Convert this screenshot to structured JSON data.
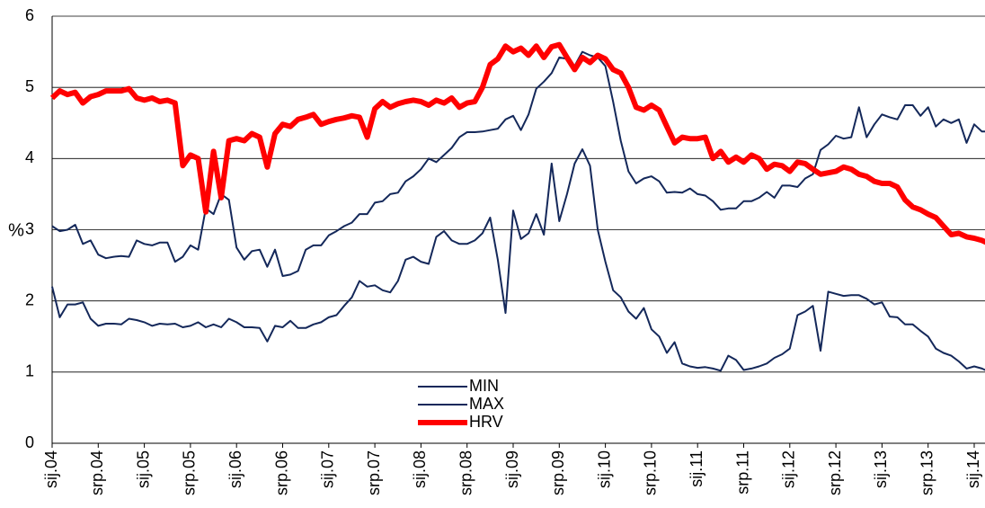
{
  "chart_data": {
    "type": "line",
    "y_label": "%",
    "categories": [
      "sij.04",
      null,
      null,
      null,
      null,
      null,
      "srp.04",
      null,
      null,
      null,
      null,
      null,
      "sij.05",
      null,
      null,
      null,
      null,
      null,
      "srp.05",
      null,
      null,
      null,
      null,
      null,
      "sij.06",
      null,
      null,
      null,
      null,
      null,
      "srp.06",
      null,
      null,
      null,
      null,
      null,
      "sij.07",
      null,
      null,
      null,
      null,
      null,
      "srp.07",
      null,
      null,
      null,
      null,
      null,
      "sij.08",
      null,
      null,
      null,
      null,
      null,
      "srp.08",
      null,
      null,
      null,
      null,
      null,
      "sij.09",
      null,
      null,
      null,
      null,
      null,
      "srp.09",
      null,
      null,
      null,
      null,
      null,
      "sij.10",
      null,
      null,
      null,
      null,
      null,
      "srp.10",
      null,
      null,
      null,
      null,
      null,
      "sij.11",
      null,
      null,
      null,
      null,
      null,
      "srp.11",
      null,
      null,
      null,
      null,
      null,
      "sij.12",
      null,
      null,
      null,
      null,
      null,
      "srp.12",
      null,
      null,
      null,
      null,
      null,
      "sij.13",
      null,
      null,
      null,
      null,
      null,
      "srp.13",
      null,
      null,
      null,
      null,
      null,
      "sij.14",
      null,
      null
    ],
    "series": [
      {
        "name": "MIN",
        "color": "#14285a",
        "values": [
          2.2,
          1.77,
          1.95,
          1.95,
          1.98,
          1.75,
          1.65,
          1.68,
          1.68,
          1.67,
          1.75,
          1.73,
          1.7,
          1.65,
          1.68,
          1.67,
          1.68,
          1.63,
          1.65,
          1.7,
          1.63,
          1.67,
          1.63,
          1.75,
          1.7,
          1.63,
          1.63,
          1.62,
          1.43,
          1.65,
          1.63,
          1.72,
          1.62,
          1.62,
          1.67,
          1.7,
          1.77,
          1.8,
          1.93,
          2.05,
          2.28,
          2.2,
          2.22,
          2.15,
          2.12,
          2.28,
          2.58,
          2.62,
          2.55,
          2.52,
          2.9,
          2.98,
          2.85,
          2.8,
          2.8,
          2.85,
          2.95,
          3.17,
          2.58,
          1.83,
          3.27,
          2.87,
          2.95,
          3.22,
          2.93,
          3.93,
          3.12,
          3.5,
          3.93,
          4.13,
          3.9,
          3.0,
          2.55,
          2.15,
          2.05,
          1.85,
          1.75,
          1.9,
          1.6,
          1.5,
          1.27,
          1.42,
          1.12,
          1.08,
          1.06,
          1.07,
          1.05,
          1.02,
          1.23,
          1.17,
          1.03,
          1.05,
          1.08,
          1.12,
          1.2,
          1.25,
          1.33,
          1.8,
          1.85,
          1.93,
          1.3,
          2.13,
          2.1,
          2.07,
          2.08,
          2.08,
          2.03,
          1.95,
          1.98,
          1.78,
          1.77,
          1.67,
          1.67,
          1.58,
          1.5,
          1.33,
          1.27,
          1.23,
          1.15,
          1.05,
          1.08,
          1.05,
          1.0
        ]
      },
      {
        "name": "MAX",
        "color": "#14285a",
        "values": [
          3.05,
          2.98,
          3.0,
          3.07,
          2.8,
          2.85,
          2.65,
          2.6,
          2.62,
          2.63,
          2.62,
          2.85,
          2.8,
          2.78,
          2.82,
          2.82,
          2.55,
          2.62,
          2.78,
          2.72,
          3.3,
          3.22,
          3.5,
          3.42,
          2.75,
          2.58,
          2.7,
          2.72,
          2.48,
          2.72,
          2.35,
          2.37,
          2.42,
          2.72,
          2.78,
          2.78,
          2.92,
          2.98,
          3.05,
          3.1,
          3.22,
          3.22,
          3.38,
          3.4,
          3.5,
          3.52,
          3.68,
          3.75,
          3.85,
          4.0,
          3.95,
          4.05,
          4.15,
          4.3,
          4.37,
          4.37,
          4.38,
          4.4,
          4.42,
          4.55,
          4.6,
          4.4,
          4.62,
          4.98,
          5.08,
          5.2,
          5.42,
          5.4,
          5.3,
          5.5,
          5.45,
          5.42,
          5.3,
          4.8,
          4.25,
          3.82,
          3.65,
          3.72,
          3.75,
          3.68,
          3.52,
          3.53,
          3.52,
          3.58,
          3.5,
          3.48,
          3.4,
          3.28,
          3.3,
          3.3,
          3.4,
          3.4,
          3.45,
          3.53,
          3.45,
          3.62,
          3.62,
          3.6,
          3.72,
          3.78,
          4.12,
          4.2,
          4.32,
          4.28,
          4.3,
          4.72,
          4.3,
          4.48,
          4.62,
          4.58,
          4.55,
          4.75,
          4.75,
          4.6,
          4.72,
          4.45,
          4.55,
          4.5,
          4.55,
          4.22,
          4.48,
          4.38,
          4.38
        ]
      },
      {
        "name": "HRV",
        "color": "#ff0000",
        "values": [
          4.85,
          4.95,
          4.9,
          4.93,
          4.78,
          4.87,
          4.9,
          4.95,
          4.95,
          4.95,
          4.98,
          4.85,
          4.82,
          4.85,
          4.8,
          4.82,
          4.78,
          3.9,
          4.05,
          4.0,
          3.25,
          4.1,
          3.45,
          4.25,
          4.28,
          4.25,
          4.35,
          4.3,
          3.88,
          4.35,
          4.48,
          4.45,
          4.55,
          4.58,
          4.62,
          4.48,
          4.52,
          4.55,
          4.57,
          4.6,
          4.58,
          4.3,
          4.7,
          4.8,
          4.72,
          4.77,
          4.8,
          4.82,
          4.8,
          4.75,
          4.82,
          4.78,
          4.85,
          4.72,
          4.78,
          4.8,
          5.0,
          5.32,
          5.4,
          5.58,
          5.5,
          5.55,
          5.45,
          5.58,
          5.42,
          5.57,
          5.6,
          5.42,
          5.25,
          5.42,
          5.35,
          5.45,
          5.4,
          5.25,
          5.2,
          5.0,
          4.72,
          4.68,
          4.75,
          4.68,
          4.45,
          4.22,
          4.3,
          4.28,
          4.28,
          4.3,
          4.0,
          4.1,
          3.95,
          4.02,
          3.95,
          4.05,
          4.0,
          3.85,
          3.92,
          3.9,
          3.82,
          3.95,
          3.93,
          3.85,
          3.78,
          3.8,
          3.82,
          3.88,
          3.85,
          3.78,
          3.75,
          3.68,
          3.65,
          3.65,
          3.6,
          3.42,
          3.32,
          3.28,
          3.22,
          3.17,
          3.05,
          2.93,
          2.95,
          2.9,
          2.88,
          2.85,
          2.8
        ]
      }
    ],
    "ylim": [
      0,
      6
    ],
    "yticks": [
      0,
      1,
      2,
      3,
      4,
      5,
      6
    ],
    "grid": true
  }
}
